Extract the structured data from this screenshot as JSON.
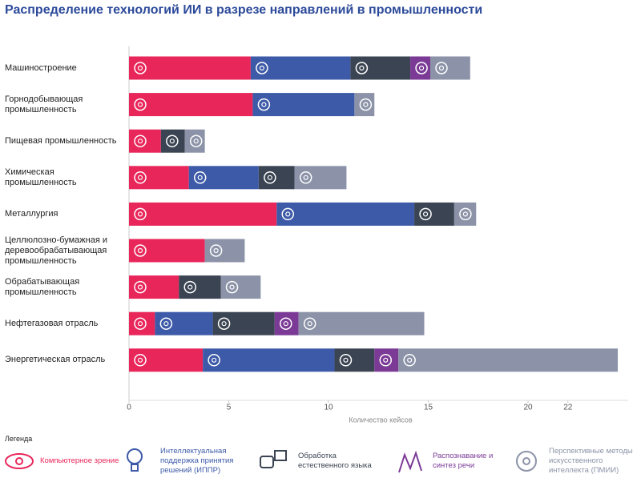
{
  "chart_data": {
    "type": "stacked-barh",
    "title": "Распределение технологий ИИ в разрезе направлений в промышленности",
    "x_label": "Количество кейсов",
    "legend_title": "Легенда",
    "categories": [
      "Машиностроение",
      "Горнодобывающая промышленность",
      "Пищевая промышленность",
      "Химическая промышленность",
      "Металлургия",
      "Целлюлозно-бумажная и деревообрабатывающая промышленность",
      "Обрабатывающая промышленность",
      "Нефтегазовая отрасль",
      "Энергетическая отрасль"
    ],
    "series": [
      {
        "name": "Компьютерное зрение",
        "color": "#e8265a",
        "values": [
          6.1,
          6.2,
          1.6,
          3.0,
          7.4,
          3.8,
          2.5,
          1.3,
          3.7
        ]
      },
      {
        "name": "Интеллектуальная поддержка принятия решений (ИППР)",
        "color": "#3d5aa8",
        "values": [
          5.0,
          5.1,
          0,
          3.5,
          6.9,
          0,
          0,
          2.9,
          6.6
        ]
      },
      {
        "name": "Обработка естественного языка",
        "color": "#3b4452",
        "values": [
          3.0,
          0,
          1.2,
          1.8,
          2.0,
          0,
          2.1,
          3.1,
          2.0
        ]
      },
      {
        "name": "Распознавание и синтез речи",
        "color": "#7b3a96",
        "values": [
          1.0,
          0,
          0,
          0,
          0,
          0,
          0,
          1.2,
          1.2
        ]
      },
      {
        "name": "Перспективные методы искусственного интеллекта (ПМИИ)",
        "color": "#8c93a8",
        "values": [
          2.0,
          1.0,
          1.0,
          2.6,
          1.1,
          2.0,
          2.0,
          6.3,
          11.0
        ]
      }
    ],
    "xlim": [
      0,
      25
    ],
    "xticks": [
      0,
      5,
      10,
      15,
      20,
      22
    ]
  }
}
